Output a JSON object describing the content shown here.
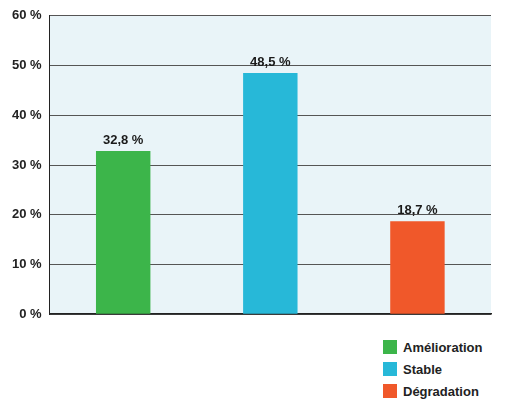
{
  "chart_data": {
    "type": "bar",
    "categories": [
      "Amélioration",
      "Stable",
      "Dégradation"
    ],
    "values": [
      32.8,
      48.5,
      18.7
    ],
    "value_labels": [
      "32,8 %",
      "48,5 %",
      "18,7 %"
    ],
    "colors": [
      "#3cb54a",
      "#27b8d8",
      "#f0582a"
    ],
    "ylim": [
      0,
      60
    ],
    "yticks": [
      {
        "value": 0,
        "label": "0 %"
      },
      {
        "value": 10,
        "label": "10 %"
      },
      {
        "value": 20,
        "label": "20 %"
      },
      {
        "value": 30,
        "label": "30 %"
      },
      {
        "value": 40,
        "label": "40 %"
      },
      {
        "value": 50,
        "label": "50 %"
      },
      {
        "value": 60,
        "label": "60 %"
      }
    ],
    "grid": true,
    "data_labels": true,
    "tick_labels": "y",
    "legend": "bottom-right"
  }
}
